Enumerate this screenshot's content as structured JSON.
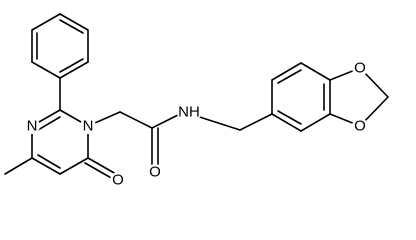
{
  "atoms": [
    {
      "label": "N"
    },
    {
      "label": "N"
    },
    {
      "label": "O"
    },
    {
      "label": "O"
    },
    {
      "label": "NH"
    },
    {
      "label": "O"
    },
    {
      "label": "O"
    }
  ]
}
